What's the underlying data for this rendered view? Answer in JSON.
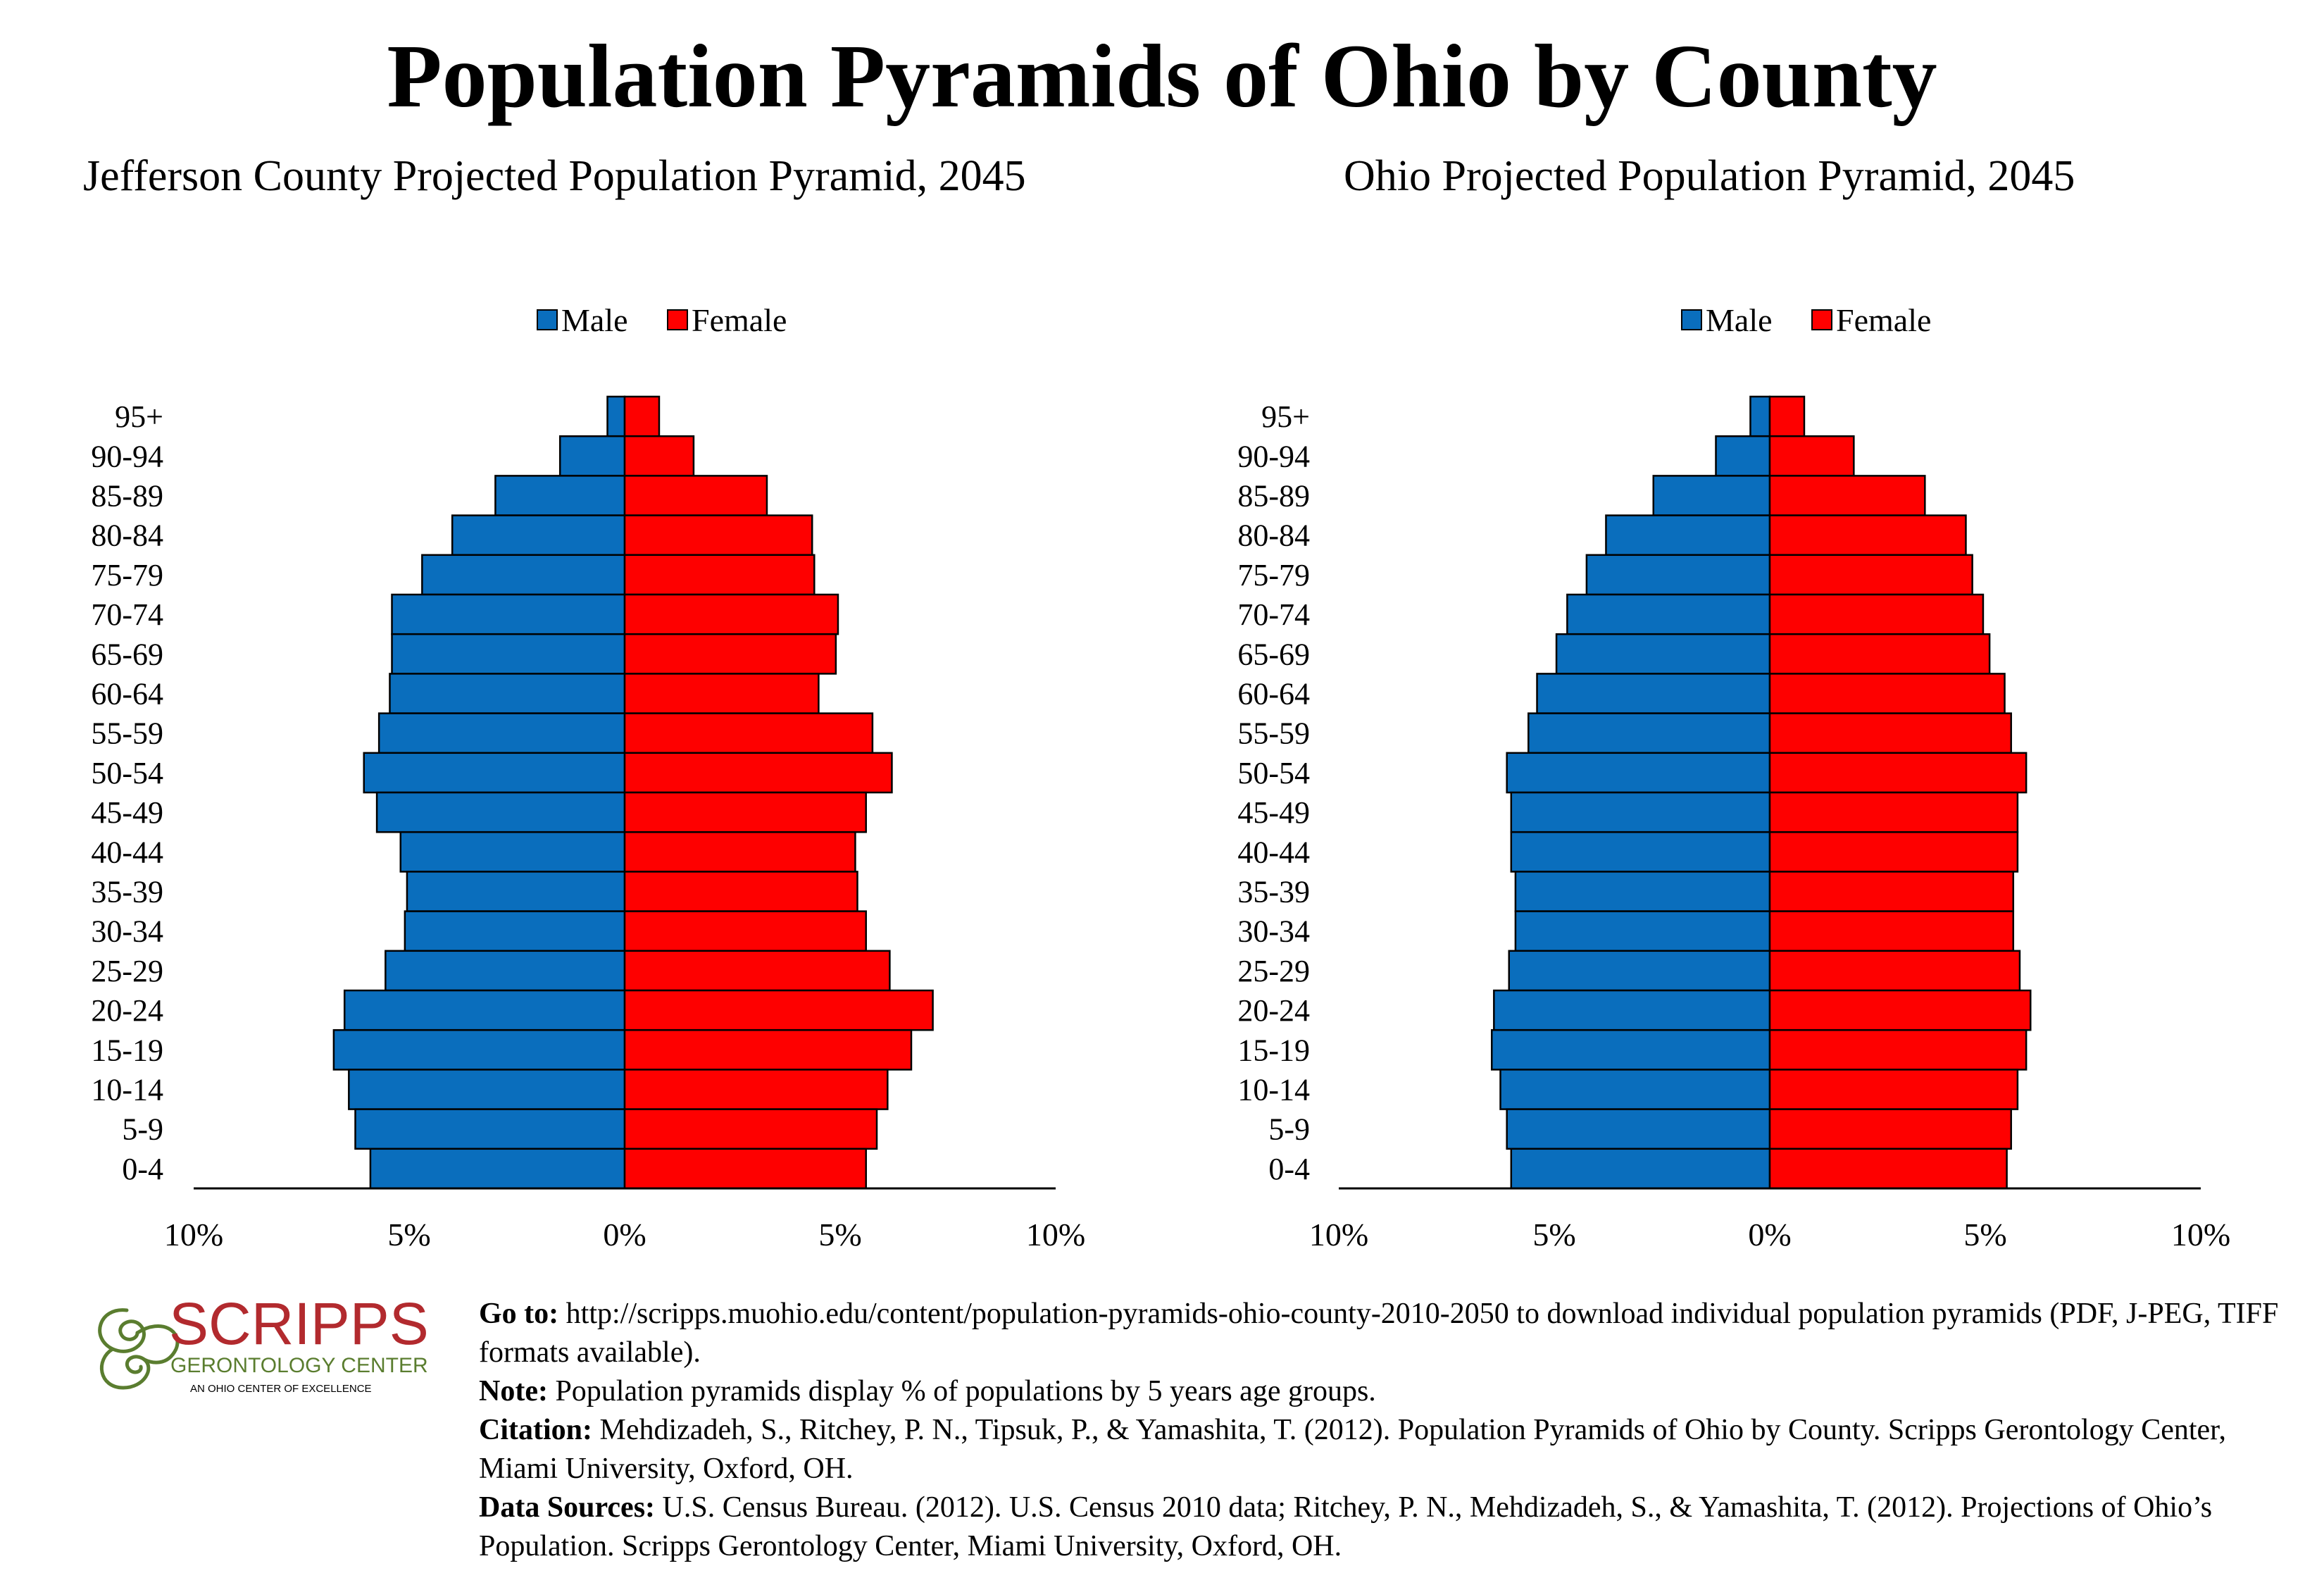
{
  "title": "Population Pyramids of Ohio by County",
  "legend": {
    "male": "Male",
    "female": "Female"
  },
  "colors": {
    "male": "#0a6ebd",
    "female": "#fe0000",
    "axis": "#000000"
  },
  "chart_data": [
    {
      "type": "bar",
      "title": "Jefferson County Projected Population Pyramid, 2045",
      "categories": [
        "95+",
        "90-94",
        "85-89",
        "80-84",
        "75-79",
        "70-74",
        "65-69",
        "60-64",
        "55-59",
        "50-54",
        "45-49",
        "40-44",
        "35-39",
        "30-34",
        "25-29",
        "20-24",
        "15-19",
        "10-14",
        "5-9",
        "0-4"
      ],
      "series": [
        {
          "name": "Male",
          "values": [
            0.4,
            1.5,
            3.0,
            4.0,
            4.7,
            5.4,
            5.4,
            5.45,
            5.7,
            6.05,
            5.75,
            5.2,
            5.05,
            5.1,
            5.55,
            6.5,
            6.75,
            6.4,
            6.25,
            5.9
          ]
        },
        {
          "name": "Female",
          "values": [
            0.8,
            1.6,
            3.3,
            4.35,
            4.4,
            4.95,
            4.9,
            4.5,
            5.75,
            6.2,
            5.6,
            5.35,
            5.4,
            5.6,
            6.15,
            7.15,
            6.65,
            6.1,
            5.85,
            5.6
          ]
        }
      ],
      "xticks": [
        "10%",
        "5%",
        "0%",
        "5%",
        "10%"
      ],
      "xlim": [
        -10,
        10
      ],
      "legend_position": "top-center",
      "grid": false
    },
    {
      "type": "bar",
      "title": "Ohio Projected Population Pyramid, 2045",
      "categories": [
        "95+",
        "90-94",
        "85-89",
        "80-84",
        "75-79",
        "70-74",
        "65-69",
        "60-64",
        "55-59",
        "50-54",
        "45-49",
        "40-44",
        "35-39",
        "30-34",
        "25-29",
        "20-24",
        "15-19",
        "10-14",
        "5-9",
        "0-4"
      ],
      "series": [
        {
          "name": "Male",
          "values": [
            0.45,
            1.25,
            2.7,
            3.8,
            4.25,
            4.7,
            4.95,
            5.4,
            5.6,
            6.1,
            6.0,
            6.0,
            5.9,
            5.9,
            6.05,
            6.4,
            6.45,
            6.25,
            6.1,
            6.0
          ]
        },
        {
          "name": "Female",
          "values": [
            0.8,
            1.95,
            3.6,
            4.55,
            4.7,
            4.95,
            5.1,
            5.45,
            5.6,
            5.95,
            5.75,
            5.75,
            5.65,
            5.65,
            5.8,
            6.05,
            5.95,
            5.75,
            5.6,
            5.5
          ]
        }
      ],
      "xticks": [
        "10%",
        "5%",
        "0%",
        "5%",
        "10%"
      ],
      "xlim": [
        -10,
        10
      ],
      "legend_position": "top-center",
      "grid": false
    }
  ],
  "logo": {
    "name": "SCRIPPS",
    "line2": "GERONTOLOGY CENTER",
    "line3": "AN OHIO CENTER OF EXCELLENCE",
    "color": "#b22a2e",
    "subcolor": "#5a7d2f"
  },
  "notes": [
    {
      "label": "Go to:",
      "text": " http://scripps.muohio.edu/content/population-pyramids-ohio-county-2010-2050 to download individual population pyramids (PDF, J-PEG, TIFF formats available)."
    },
    {
      "label": "Note:",
      "text": " Population pyramids display % of populations by 5 years age groups."
    },
    {
      "label": "Citation:",
      "text": " Mehdizadeh, S., Ritchey, P. N., Tipsuk, P., & Yamashita, T. (2012). Population Pyramids of Ohio by County. Scripps Gerontology Center, Miami University, Oxford, OH."
    },
    {
      "label": "Data Sources:",
      "text": " U.S. Census Bureau. (2012). U.S. Census 2010 data; Ritchey, P. N., Mehdizadeh, S., & Yamashita, T. (2012). Projections of Ohio’s Population. Scripps Gerontology Center, Miami University, Oxford, OH."
    }
  ]
}
